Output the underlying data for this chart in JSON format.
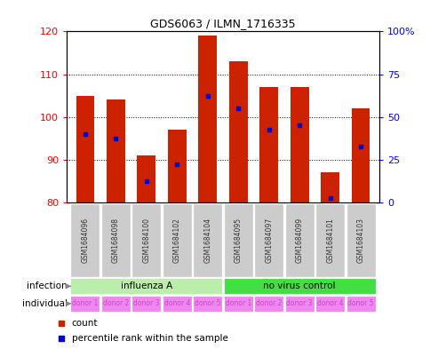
{
  "title": "GDS6063 / ILMN_1716335",
  "samples": [
    "GSM1684096",
    "GSM1684098",
    "GSM1684100",
    "GSM1684102",
    "GSM1684104",
    "GSM1684095",
    "GSM1684097",
    "GSM1684099",
    "GSM1684101",
    "GSM1684103"
  ],
  "bar_bottoms": [
    80,
    80,
    80,
    80,
    80,
    80,
    80,
    80,
    80,
    80
  ],
  "bar_tops": [
    105,
    104,
    91,
    97,
    119,
    113,
    107,
    107,
    87,
    102
  ],
  "percentile_values": [
    96,
    95,
    85,
    89,
    105,
    102,
    97,
    98,
    81,
    93
  ],
  "ylim_left": [
    80,
    120
  ],
  "ylim_right": [
    0,
    100
  ],
  "yticks_left": [
    80,
    90,
    100,
    110,
    120
  ],
  "yticks_right": [
    0,
    25,
    50,
    75,
    100
  ],
  "bar_color": "#cc2200",
  "dot_color": "#0000cc",
  "infection_groups": [
    {
      "label": "influenza A",
      "start": 0,
      "end": 5,
      "color": "#bbeeaa"
    },
    {
      "label": "no virus control",
      "start": 5,
      "end": 10,
      "color": "#44dd44"
    }
  ],
  "individual_labels": [
    "donor 1",
    "donor 2",
    "donor 3",
    "donor 4",
    "donor 5",
    "donor 1",
    "donor 2",
    "donor 3",
    "donor 4",
    "donor 5"
  ],
  "individual_color": "#ee88ee",
  "sample_bg_color": "#cccccc",
  "sample_text_color": "#333333",
  "legend_count_color": "#cc2200",
  "legend_dot_color": "#0000cc",
  "infection_label": "infection",
  "individual_label": "individual",
  "left_label_color": "#666666",
  "arrow_color": "#888888"
}
